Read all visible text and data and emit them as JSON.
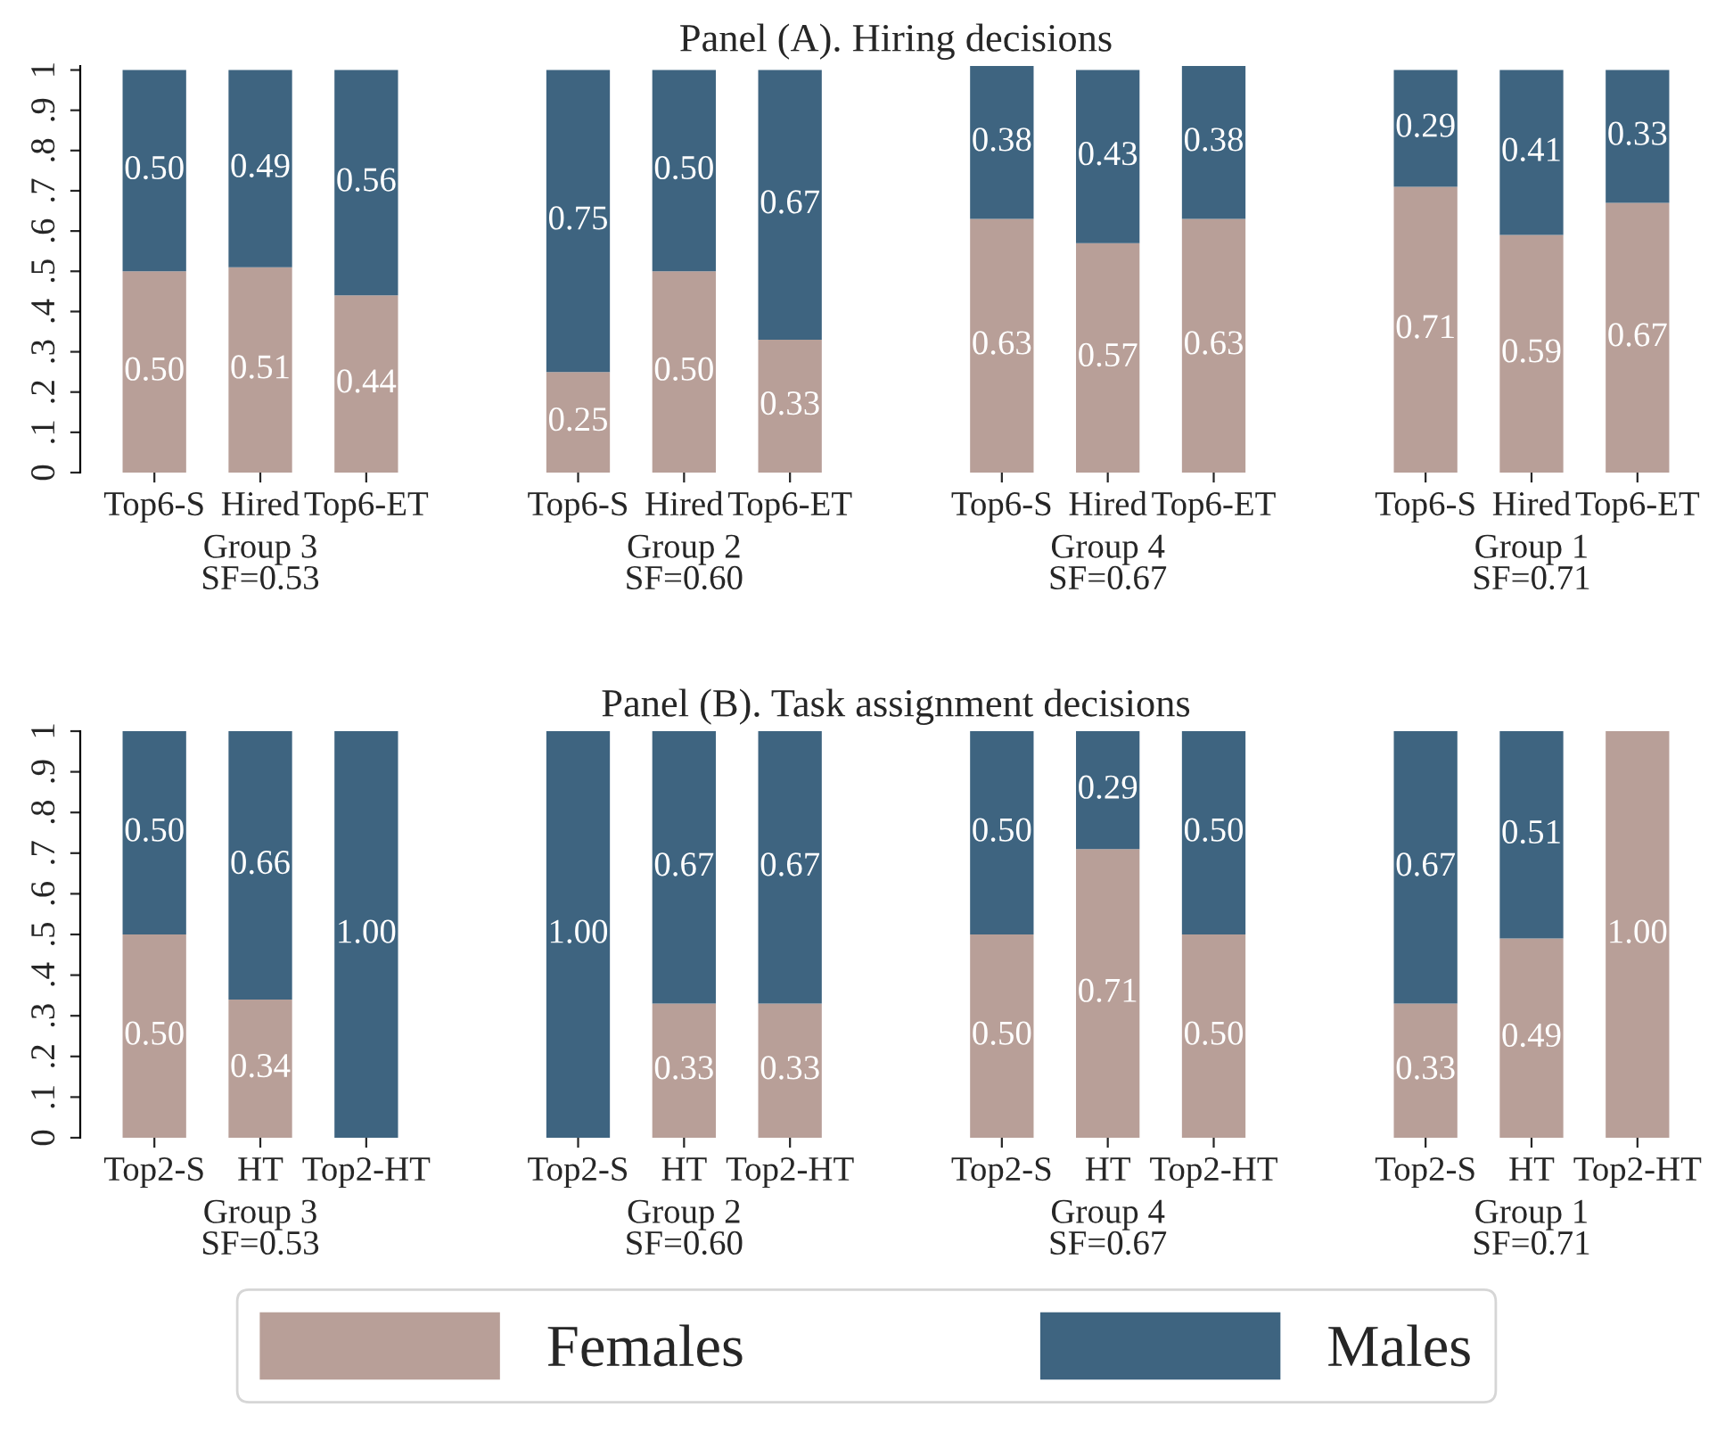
{
  "chart_data": [
    {
      "type": "bar",
      "title": "Panel (A). Hiring decisions",
      "stacked": true,
      "categories": [
        "Top6-S",
        "Hired",
        "Top6-ET",
        "Top6-S",
        "Hired",
        "Top6-ET",
        "Top6-S",
        "Hired",
        "Top6-ET",
        "Top6-S",
        "Hired",
        "Top6-ET"
      ],
      "series": [
        {
          "color": "#b89f98",
          "values": [
            0.5,
            0.51,
            0.44,
            0.25,
            0.5,
            0.33,
            0.63,
            0.57,
            0.63,
            0.71,
            0.59,
            0.67
          ],
          "value_labels": [
            "0.50",
            "0.51",
            "0.44",
            "0.25",
            "0.50",
            "0.33",
            "0.63",
            "0.57",
            "0.63",
            "0.71",
            "0.59",
            "0.67"
          ]
        },
        {
          "color": "#3e6480",
          "values": [
            0.5,
            0.49,
            0.56,
            0.75,
            0.5,
            0.67,
            0.38,
            0.43,
            0.38,
            0.29,
            0.41,
            0.33
          ],
          "value_labels": [
            "0.50",
            "0.49",
            "0.56",
            "0.75",
            "0.50",
            "0.67",
            "0.38",
            "0.43",
            "0.38",
            "0.29",
            "0.41",
            "0.33"
          ]
        }
      ],
      "annotations": [
        "Group 3\nSF=0.53",
        "Group 2\nSF=0.60",
        "Group 4\nSF=0.67",
        "Group 1\nSF=0.71"
      ],
      "ylim": [
        0,
        1.01
      ],
      "yticks": [
        0,
        {
          "value": 0.1,
          "label": ".1"
        },
        {
          "value": 0.2,
          "label": ".2"
        },
        {
          "value": 0.3,
          "label": ".3"
        },
        {
          "value": 0.4,
          "label": ".4"
        },
        {
          "value": 0.5,
          "label": ".5"
        },
        {
          "value": 0.6,
          "label": ".6"
        },
        {
          "value": 0.7,
          "label": ".7"
        },
        {
          "value": 0.8,
          "label": ".8"
        },
        {
          "value": 0.9,
          "label": ".9"
        },
        1
      ]
    },
    {
      "type": "bar",
      "title": "Panel (B). Task assignment decisions",
      "stacked": true,
      "categories": [
        "Top2-S",
        "HT",
        "Top2-HT",
        "Top2-S",
        "HT",
        "Top2-HT",
        "Top2-S",
        "HT",
        "Top2-HT",
        "Top2-S",
        "HT",
        "Top2-HT"
      ],
      "series": [
        {
          "name": "Females",
          "color": "#b89f98",
          "values": [
            0.5,
            0.34,
            0,
            0,
            0.33,
            0.33,
            0.5,
            0.71,
            0.5,
            0.33,
            0.49,
            1.0
          ],
          "value_labels": [
            "0.50",
            "0.34",
            null,
            null,
            "0.33",
            "0.33",
            "0.50",
            "0.71",
            "0.50",
            "0.33",
            "0.49",
            "1.00"
          ]
        },
        {
          "name": "Males",
          "color": "#3e6480",
          "values": [
            0.5,
            0.66,
            1.0,
            1.0,
            0.67,
            0.67,
            0.5,
            0.29,
            0.5,
            0.67,
            0.51,
            0
          ],
          "value_labels": [
            "0.50",
            "0.66",
            "1.00",
            "1.00",
            "0.67",
            "0.67",
            "0.50",
            "0.29",
            "0.50",
            "0.67",
            "0.51",
            null
          ]
        }
      ],
      "annotations": [
        "Group 3\nSF=0.53",
        "Group 2\nSF=0.60",
        "Group 4\nSF=0.67",
        "Group 1\nSF=0.71"
      ],
      "ylim": [
        0,
        1
      ],
      "yticks": [
        0,
        {
          "value": 0.1,
          "label": ".1"
        },
        {
          "value": 0.2,
          "label": ".2"
        },
        {
          "value": 0.3,
          "label": ".3"
        },
        {
          "value": 0.4,
          "label": ".4"
        },
        {
          "value": 0.5,
          "label": ".5"
        },
        {
          "value": 0.6,
          "label": ".6"
        },
        {
          "value": 0.7,
          "label": ".7"
        },
        {
          "value": 0.8,
          "label": ".8"
        },
        {
          "value": 0.9,
          "label": ".9"
        },
        1
      ],
      "grid": false,
      "legend": "bottom"
    }
  ]
}
